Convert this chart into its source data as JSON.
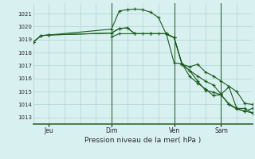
{
  "background_color": "#d8f0f0",
  "grid_color": "#b0d4d4",
  "line_color": "#1a5c1a",
  "title": "Pression niveau de la mer( hPa )",
  "ylabel_ticks": [
    1013,
    1014,
    1015,
    1016,
    1017,
    1018,
    1019,
    1020,
    1021
  ],
  "ylim": [
    1012.5,
    1021.8
  ],
  "xtick_labels": [
    "Jeu",
    "Dim",
    "Ven",
    "Sam"
  ],
  "xtick_positions": [
    12,
    60,
    108,
    144
  ],
  "xlim": [
    0,
    168
  ],
  "vlines_dark": [
    60,
    108,
    144
  ],
  "vlines_light_step": 12,
  "series": [
    {
      "points": [
        [
          0,
          1018.8
        ],
        [
          6,
          1019.3
        ],
        [
          12,
          1019.35
        ],
        [
          60,
          1019.8
        ],
        [
          66,
          1021.2
        ],
        [
          72,
          1021.3
        ],
        [
          78,
          1021.35
        ],
        [
          84,
          1021.3
        ],
        [
          90,
          1021.1
        ],
        [
          96,
          1020.7
        ],
        [
          102,
          1019.4
        ],
        [
          108,
          1019.15
        ],
        [
          114,
          1017.1
        ],
        [
          120,
          1016.9
        ],
        [
          126,
          1017.1
        ],
        [
          132,
          1016.5
        ],
        [
          138,
          1016.2
        ],
        [
          144,
          1015.8
        ],
        [
          150,
          1015.4
        ],
        [
          156,
          1015.0
        ],
        [
          162,
          1014.1
        ],
        [
          168,
          1014.0
        ]
      ]
    },
    {
      "points": [
        [
          0,
          1018.8
        ],
        [
          6,
          1019.3
        ],
        [
          12,
          1019.35
        ],
        [
          60,
          1019.5
        ],
        [
          66,
          1019.85
        ],
        [
          72,
          1019.9
        ],
        [
          78,
          1019.45
        ],
        [
          84,
          1019.45
        ],
        [
          90,
          1019.45
        ],
        [
          96,
          1019.45
        ],
        [
          102,
          1019.45
        ],
        [
          108,
          1019.15
        ],
        [
          114,
          1017.1
        ],
        [
          120,
          1016.6
        ],
        [
          126,
          1016.2
        ],
        [
          132,
          1015.8
        ],
        [
          138,
          1015.5
        ],
        [
          144,
          1014.8
        ],
        [
          150,
          1015.35
        ],
        [
          156,
          1013.7
        ],
        [
          162,
          1013.5
        ],
        [
          168,
          1013.7
        ]
      ]
    },
    {
      "points": [
        [
          0,
          1018.8
        ],
        [
          6,
          1019.3
        ],
        [
          12,
          1019.35
        ],
        [
          60,
          1019.5
        ],
        [
          66,
          1019.85
        ],
        [
          72,
          1019.9
        ],
        [
          78,
          1019.45
        ],
        [
          90,
          1019.45
        ],
        [
          102,
          1019.45
        ],
        [
          108,
          1019.15
        ],
        [
          114,
          1017.15
        ],
        [
          120,
          1016.6
        ],
        [
          126,
          1015.8
        ],
        [
          132,
          1015.1
        ],
        [
          138,
          1014.95
        ],
        [
          144,
          1014.75
        ],
        [
          150,
          1014.0
        ],
        [
          156,
          1013.65
        ],
        [
          162,
          1013.5
        ],
        [
          168,
          1013.35
        ]
      ]
    },
    {
      "points": [
        [
          60,
          1019.2
        ],
        [
          66,
          1019.45
        ],
        [
          78,
          1019.45
        ],
        [
          90,
          1019.45
        ],
        [
          102,
          1019.45
        ],
        [
          108,
          1017.2
        ],
        [
          114,
          1017.15
        ],
        [
          120,
          1016.15
        ],
        [
          126,
          1015.65
        ],
        [
          132,
          1015.2
        ],
        [
          138,
          1014.7
        ],
        [
          144,
          1014.75
        ],
        [
          150,
          1014.05
        ],
        [
          156,
          1013.7
        ],
        [
          162,
          1013.7
        ],
        [
          168,
          1013.35
        ]
      ]
    }
  ]
}
